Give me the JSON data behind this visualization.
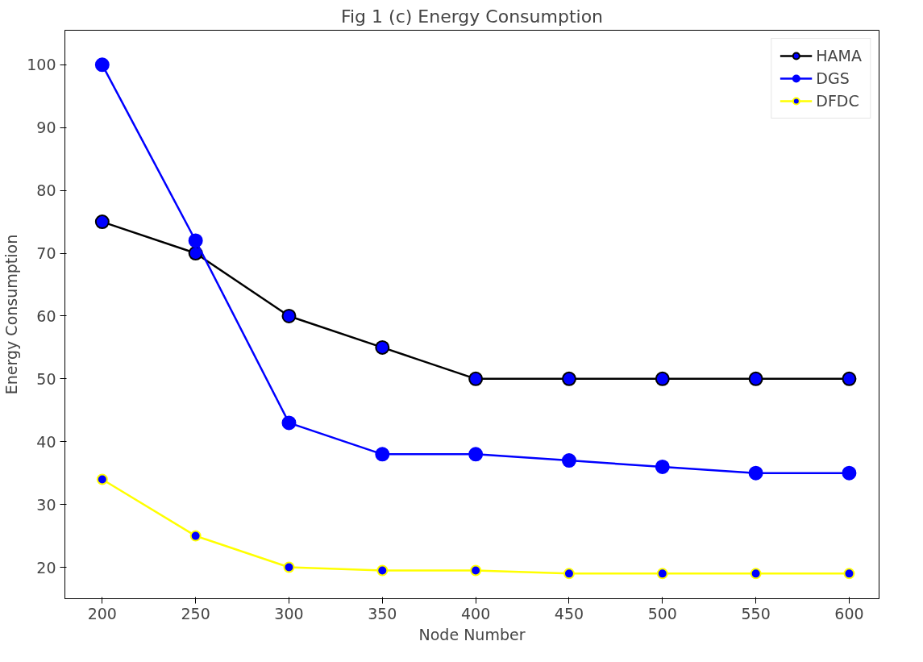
{
  "chart_data": {
    "type": "line",
    "title": "Fig 1 (c) Energy Consumption",
    "xlabel": "Node Number",
    "ylabel": "Energy Consumption",
    "x": [
      200,
      250,
      300,
      350,
      400,
      450,
      500,
      550,
      600
    ],
    "series": [
      {
        "name": "HAMA",
        "color": "#000000",
        "values": [
          75,
          70,
          60,
          55,
          50,
          50,
          50,
          50,
          50
        ]
      },
      {
        "name": "DGS",
        "color": "#0000ff",
        "values": [
          100,
          72,
          43,
          38,
          38,
          37,
          36,
          35,
          35
        ]
      },
      {
        "name": "DFDC",
        "color": "#ffff00",
        "values": [
          34,
          25,
          20,
          19.5,
          19.5,
          19,
          19,
          19,
          19
        ]
      }
    ],
    "xlim": [
      180,
      616
    ],
    "ylim": [
      15,
      105.5
    ],
    "xticks": [
      200,
      250,
      300,
      350,
      400,
      450,
      500,
      550,
      600
    ],
    "yticks": [
      20,
      30,
      40,
      50,
      60,
      70,
      80,
      90,
      100
    ],
    "grid": false,
    "legend": "top right",
    "marker": "circle",
    "line_style": "solid"
  }
}
